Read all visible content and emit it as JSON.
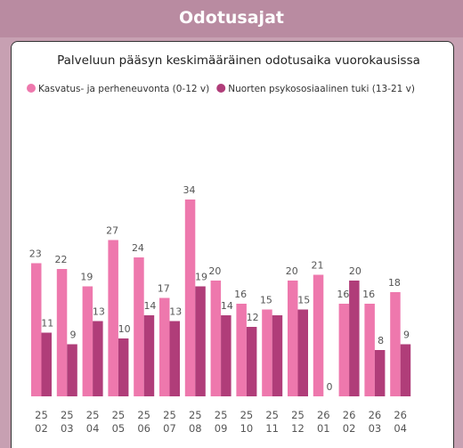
{
  "header": {
    "title": "Odotusajat"
  },
  "chart_data": {
    "type": "bar",
    "title": "Palveluun pääsyn keskimääräinen odotusaika vuorokausissa",
    "categories": [
      "25 02",
      "25 03",
      "25 04",
      "25 05",
      "25 06",
      "25 07",
      "25 08",
      "25 09",
      "25 10",
      "25 11",
      "25 12",
      "26 01",
      "26 02",
      "26 03",
      "26 04"
    ],
    "series": [
      {
        "name": "Kasvatus- ja perheneuvonta (0-12 v)",
        "color": "#ee78ad",
        "values": [
          23,
          22,
          19,
          27,
          24,
          17,
          34,
          20,
          16,
          15,
          20,
          21,
          16,
          16,
          18
        ]
      },
      {
        "name": "Nuorten psykososiaalinen tuki (13-21 v)",
        "color": "#b03d79",
        "values": [
          11,
          9,
          13,
          10,
          14,
          13,
          19,
          14,
          12,
          14,
          15,
          0,
          20,
          8,
          9
        ],
        "value_labels": [
          "11",
          "9",
          "13",
          "10",
          "14",
          "13",
          "19",
          "14",
          "12",
          null,
          "15",
          "0",
          "20",
          "8",
          "9"
        ]
      }
    ],
    "legend": "top-left",
    "grid": false
  }
}
